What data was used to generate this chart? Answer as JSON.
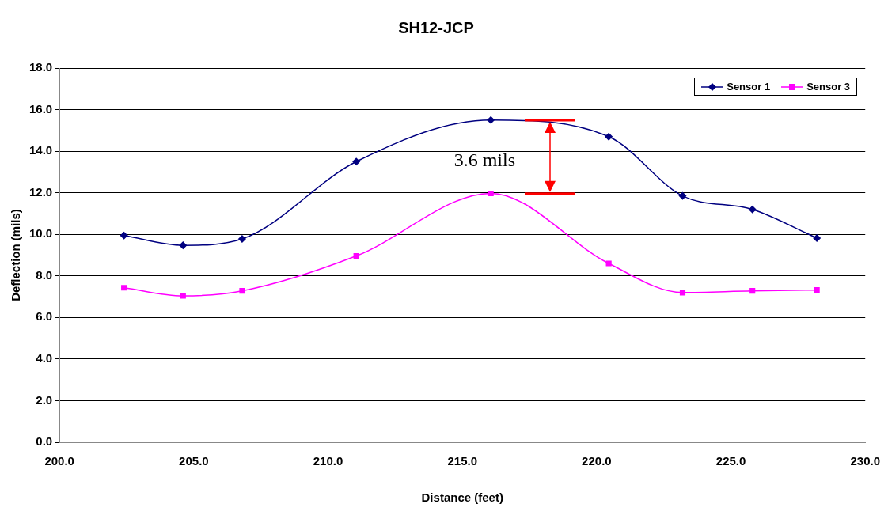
{
  "chart_data": {
    "type": "line",
    "title": "SH12-JCP",
    "xlabel": "Distance (feet)",
    "ylabel": "Deflection (mils)",
    "x": [
      202.4,
      204.6,
      206.8,
      211.05,
      216.06,
      220.45,
      223.2,
      225.8,
      228.2
    ],
    "series": [
      {
        "name": "Sensor 1",
        "color": "#000080",
        "marker": "diamond",
        "values": [
          9.94,
          9.47,
          9.78,
          13.5,
          15.5,
          14.7,
          11.85,
          11.2,
          9.82
        ]
      },
      {
        "name": "Sensor 3",
        "color": "#ff00ff",
        "marker": "square",
        "values": [
          7.43,
          7.04,
          7.28,
          8.96,
          11.97,
          8.6,
          7.2,
          7.28,
          7.32
        ]
      }
    ],
    "xlim": [
      200,
      230
    ],
    "xticks": [
      {
        "value": 200,
        "label": "200.0"
      },
      {
        "value": 205,
        "label": "205.0"
      },
      {
        "value": 210,
        "label": "210.0"
      },
      {
        "value": 215,
        "label": "215.0"
      },
      {
        "value": 220,
        "label": "220.0"
      },
      {
        "value": 225,
        "label": "225.0"
      },
      {
        "value": 230,
        "label": "230.0"
      }
    ],
    "ylim": [
      0,
      18
    ],
    "yticks": [
      {
        "value": 0,
        "label": "0.0"
      },
      {
        "value": 2,
        "label": "2.0"
      },
      {
        "value": 4,
        "label": "4.0"
      },
      {
        "value": 6,
        "label": "6.0"
      },
      {
        "value": 8,
        "label": "8.0"
      },
      {
        "value": 10,
        "label": "10.0"
      },
      {
        "value": 12,
        "label": "12.0"
      },
      {
        "value": 14,
        "label": "14.0"
      },
      {
        "value": 16,
        "label": "16.0"
      },
      {
        "value": 18,
        "label": "18.0"
      }
    ],
    "grid": "y",
    "legend": "top right",
    "line_style": "solid",
    "annotations": [
      "3.6 mils"
    ]
  }
}
